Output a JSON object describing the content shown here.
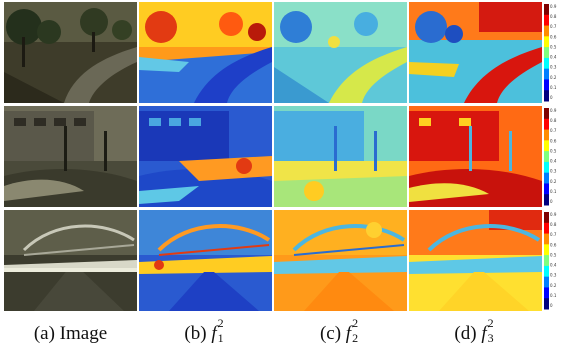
{
  "figure": {
    "captions": [
      {
        "label": "(a) Image",
        "symbol": "",
        "sub": "",
        "sup": ""
      },
      {
        "label": "(b)",
        "symbol": "f",
        "sub": "1",
        "sup": "2"
      },
      {
        "label": "(c)",
        "symbol": "f",
        "sub": "2",
        "sup": "2"
      },
      {
        "label": "(d)",
        "symbol": "f",
        "sub": "3",
        "sup": "2"
      }
    ],
    "colorbar": {
      "ticks": [
        "0.9",
        "0.8",
        "0.7",
        "0.6",
        "0.5",
        "0.4",
        "0.3",
        "0.2",
        "0.1",
        "0"
      ],
      "colors": [
        "#7f0000",
        "#ff0000",
        "#ff8c00",
        "#ffff00",
        "#7fff7f",
        "#00ffff",
        "#007fff",
        "#0000ff",
        "#00007f"
      ]
    },
    "rows": [
      {
        "scene": "road-with-trees",
        "map_levels": {
          "b": 0.55,
          "c": 0.42,
          "d": 0.7
        }
      },
      {
        "scene": "building-street",
        "map_levels": {
          "b": 0.3,
          "c": 0.5,
          "d": 0.75
        }
      },
      {
        "scene": "bridge-road",
        "map_levels": {
          "b": 0.25,
          "c": 0.68,
          "d": 0.72
        }
      }
    ]
  }
}
